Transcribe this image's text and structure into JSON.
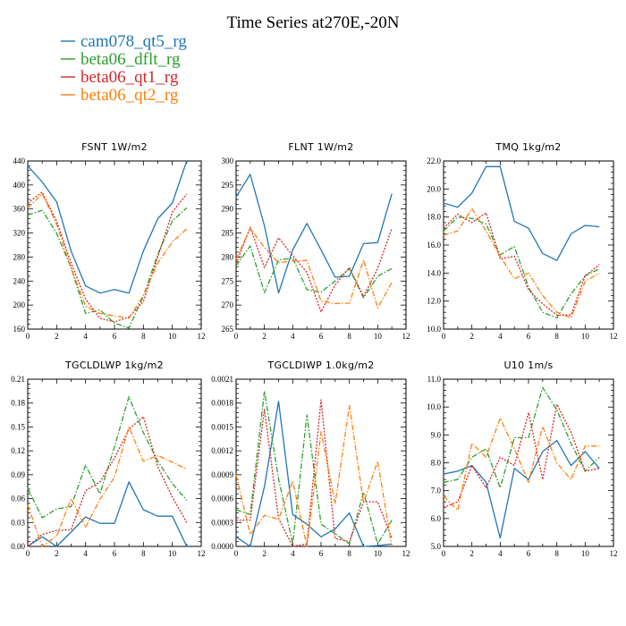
{
  "title": "Time Series at270E,-20N",
  "colors": {
    "cam078_qt5_rg": "#1f77b4",
    "beta06_dflt_rg": "#2ca02c",
    "beta06_qt1_rg": "#d62728",
    "beta06_qt2_rg": "#ff7f0e"
  },
  "legend": [
    {
      "name": "cam078_qt5_rg",
      "style": "solid"
    },
    {
      "name": "beta06_dflt_rg",
      "style": "dashdot"
    },
    {
      "name": "beta06_qt1_rg",
      "style": "dotted"
    },
    {
      "name": "beta06_qt2_rg",
      "style": "dashdot"
    }
  ],
  "chart_data": [
    {
      "type": "line",
      "title": "FSNT   1W/m2",
      "x": [
        0,
        1,
        2,
        3,
        4,
        5,
        6,
        7,
        8,
        9,
        10,
        11
      ],
      "xlim": [
        0,
        12
      ],
      "xticks": [
        "0",
        "2",
        "4",
        "6",
        "8",
        "10",
        "12"
      ],
      "ylim": [
        160,
        440
      ],
      "yticks": [
        "160",
        "200",
        "240",
        "280",
        "320",
        "360",
        "400",
        "440"
      ],
      "series": [
        {
          "name": "cam078_qt5_rg",
          "values": [
            432,
            405,
            372,
            290,
            232,
            220,
            226,
            220,
            290,
            344,
            370,
            440
          ]
        },
        {
          "name": "beta06_dflt_rg",
          "values": [
            350,
            358,
            320,
            262,
            186,
            192,
            170,
            162,
            215,
            285,
            340,
            362
          ]
        },
        {
          "name": "beta06_qt1_rg",
          "values": [
            370,
            388,
            340,
            270,
            210,
            178,
            172,
            180,
            206,
            280,
            355,
            385
          ]
        },
        {
          "name": "beta06_qt2_rg",
          "values": [
            362,
            385,
            335,
            262,
            198,
            186,
            182,
            178,
            216,
            270,
            305,
            327
          ]
        }
      ]
    },
    {
      "type": "line",
      "title": "FLNT   1W/m2",
      "x": [
        0,
        1,
        2,
        3,
        4,
        5,
        6,
        7,
        8,
        9,
        10,
        11
      ],
      "xlim": [
        0,
        12
      ],
      "xticks": [
        "0",
        "2",
        "4",
        "6",
        "8",
        "10",
        "12"
      ],
      "ylim": [
        265,
        300
      ],
      "yticks": [
        "265",
        "270",
        "275",
        "280",
        "285",
        "290",
        "295",
        "300"
      ],
      "series": [
        {
          "name": "cam078_qt5_rg",
          "values": [
            292.5,
            297.2,
            286.5,
            272.5,
            281.5,
            287.0,
            281.5,
            275.8,
            276.0,
            282.8,
            283.0,
            293.2
          ]
        },
        {
          "name": "beta06_dflt_rg",
          "values": [
            278.2,
            282.3,
            272.6,
            279.4,
            279.8,
            273.2,
            272.7,
            275.0,
            277.6,
            271.5,
            276.0,
            277.6
          ]
        },
        {
          "name": "beta06_qt1_rg",
          "values": [
            278.6,
            286.2,
            277.8,
            284.0,
            280.3,
            276.8,
            268.6,
            274.2,
            277.8,
            271.8,
            277.6,
            286.0
          ]
        },
        {
          "name": "beta06_qt2_rg",
          "values": [
            279.5,
            286.0,
            282.0,
            278.8,
            279.2,
            279.3,
            270.8,
            270.3,
            270.4,
            279.4,
            269.4,
            274.7
          ]
        }
      ]
    },
    {
      "type": "line",
      "title": "TMQ   1kg/m2",
      "x": [
        0,
        1,
        2,
        3,
        4,
        5,
        6,
        7,
        8,
        9,
        10,
        11
      ],
      "xlim": [
        0,
        12
      ],
      "xticks": [
        "0",
        "2",
        "4",
        "6",
        "8",
        "10",
        "12"
      ],
      "ylim": [
        10.0,
        22.0
      ],
      "yticks": [
        "10.0",
        "12.0",
        "14.0",
        "16.0",
        "18.0",
        "20.0",
        "22.0"
      ],
      "series": [
        {
          "name": "cam078_qt5_rg",
          "values": [
            19.0,
            18.7,
            19.7,
            21.6,
            21.6,
            17.7,
            17.2,
            15.4,
            14.9,
            16.8,
            17.4,
            17.3
          ]
        },
        {
          "name": "beta06_dflt_rg",
          "values": [
            17.0,
            18.0,
            17.9,
            17.5,
            15.3,
            15.9,
            13.0,
            11.2,
            10.8,
            12.5,
            13.8,
            14.3
          ]
        },
        {
          "name": "beta06_qt1_rg",
          "values": [
            17.2,
            18.2,
            17.6,
            18.3,
            15.0,
            15.2,
            12.8,
            11.8,
            11.0,
            11.0,
            13.8,
            14.6
          ]
        },
        {
          "name": "beta06_qt2_rg",
          "values": [
            16.7,
            17.0,
            18.6,
            17.0,
            15.2,
            13.6,
            14.0,
            12.4,
            11.2,
            10.8,
            13.4,
            14.0
          ]
        }
      ]
    },
    {
      "type": "line",
      "title": "TGCLDLWP   1kg/m2",
      "x": [
        0,
        1,
        2,
        3,
        4,
        5,
        6,
        7,
        8,
        9,
        10,
        11
      ],
      "xlim": [
        0,
        12
      ],
      "xticks": [
        "0",
        "2",
        "4",
        "6",
        "8",
        "10",
        "12"
      ],
      "ylim": [
        0.0,
        0.21
      ],
      "yticks": [
        "0.00",
        "0.03",
        "0.06",
        "0.09",
        "0.12",
        "0.15",
        "0.18",
        "0.21"
      ],
      "series": [
        {
          "name": "cam078_qt5_rg",
          "values": [
            0.0,
            0.012,
            0.0,
            0.018,
            0.037,
            0.029,
            0.029,
            0.081,
            0.046,
            0.038,
            0.038,
            0.0
          ]
        },
        {
          "name": "beta06_dflt_rg",
          "values": [
            0.073,
            0.036,
            0.047,
            0.05,
            0.102,
            0.066,
            0.125,
            0.188,
            0.143,
            0.107,
            0.079,
            0.058
          ]
        },
        {
          "name": "beta06_qt1_rg",
          "values": [
            0.0,
            0.015,
            0.02,
            0.021,
            0.07,
            0.081,
            0.111,
            0.147,
            0.163,
            0.1,
            0.062,
            0.03
          ]
        },
        {
          "name": "beta06_qt2_rg",
          "values": [
            0.052,
            0.0,
            0.013,
            0.06,
            0.024,
            0.059,
            0.087,
            0.15,
            0.107,
            0.114,
            0.106,
            0.097
          ]
        }
      ]
    },
    {
      "type": "line",
      "title": "TGCLDIWP   1.0kg/m2",
      "x": [
        0,
        1,
        2,
        3,
        4,
        5,
        6,
        7,
        8,
        9,
        10,
        11
      ],
      "xlim": [
        0,
        12
      ],
      "xticks": [
        "0",
        "2",
        "4",
        "6",
        "8",
        "10",
        "12"
      ],
      "ylim": [
        0.0,
        0.0021
      ],
      "yticks": [
        "0.0000",
        "0.0003",
        "0.0006",
        "0.0009",
        "0.0012",
        "0.0015",
        "0.0018",
        "0.0021"
      ],
      "series": [
        {
          "name": "cam078_qt5_rg",
          "values": [
            0.00012,
            0.0,
            0.00075,
            0.00182,
            0.0004,
            0.00028,
            0.00012,
            0.00022,
            0.00042,
            0.0,
            1e-05,
            3e-05
          ]
        },
        {
          "name": "beta06_dflt_rg",
          "values": [
            0.00046,
            0.0004,
            0.00195,
            0.00085,
            3e-05,
            0.00165,
            0.00028,
            0.00016,
            3e-05,
            0.00068,
            3e-05,
            0.00033
          ]
        },
        {
          "name": "beta06_qt1_rg",
          "values": [
            0.00033,
            0.00033,
            0.00172,
            0.00035,
            0.0,
            3e-05,
            0.00184,
            0.0001,
            6e-05,
            0.00056,
            0.00056,
            0.0001
          ]
        },
        {
          "name": "beta06_qt2_rg",
          "values": [
            0.0009,
            0.00015,
            0.00039,
            0.00034,
            0.00082,
            0.0,
            0.00144,
            0.00054,
            0.00177,
            0.00055,
            0.00107,
            0.0
          ]
        }
      ]
    },
    {
      "type": "line",
      "title": "U10   1m/s",
      "x": [
        0,
        1,
        2,
        3,
        4,
        5,
        6,
        7,
        8,
        9,
        10,
        11
      ],
      "xlim": [
        0,
        12
      ],
      "xticks": [
        "0",
        "2",
        "4",
        "6",
        "8",
        "10",
        "12"
      ],
      "ylim": [
        5.0,
        11.0
      ],
      "yticks": [
        "5.0",
        "6.0",
        "7.0",
        "8.0",
        "9.0",
        "10.0",
        "11.0"
      ],
      "series": [
        {
          "name": "cam078_qt5_rg",
          "values": [
            7.6,
            7.7,
            7.9,
            7.3,
            5.3,
            7.8,
            7.4,
            8.4,
            8.8,
            7.9,
            8.4,
            7.8
          ]
        },
        {
          "name": "beta06_dflt_rg",
          "values": [
            7.3,
            7.4,
            8.2,
            8.5,
            7.1,
            8.9,
            8.9,
            10.7,
            9.9,
            8.7,
            7.7,
            8.2
          ]
        },
        {
          "name": "beta06_qt1_rg",
          "values": [
            6.4,
            6.6,
            7.9,
            7.1,
            8.2,
            7.9,
            9.8,
            7.4,
            10.1,
            9.1,
            7.7,
            7.8
          ]
        },
        {
          "name": "beta06_qt2_rg",
          "values": [
            6.8,
            6.3,
            8.7,
            8.2,
            9.6,
            8.5,
            7.3,
            9.3,
            8.0,
            7.4,
            8.6,
            8.6
          ]
        }
      ]
    }
  ]
}
